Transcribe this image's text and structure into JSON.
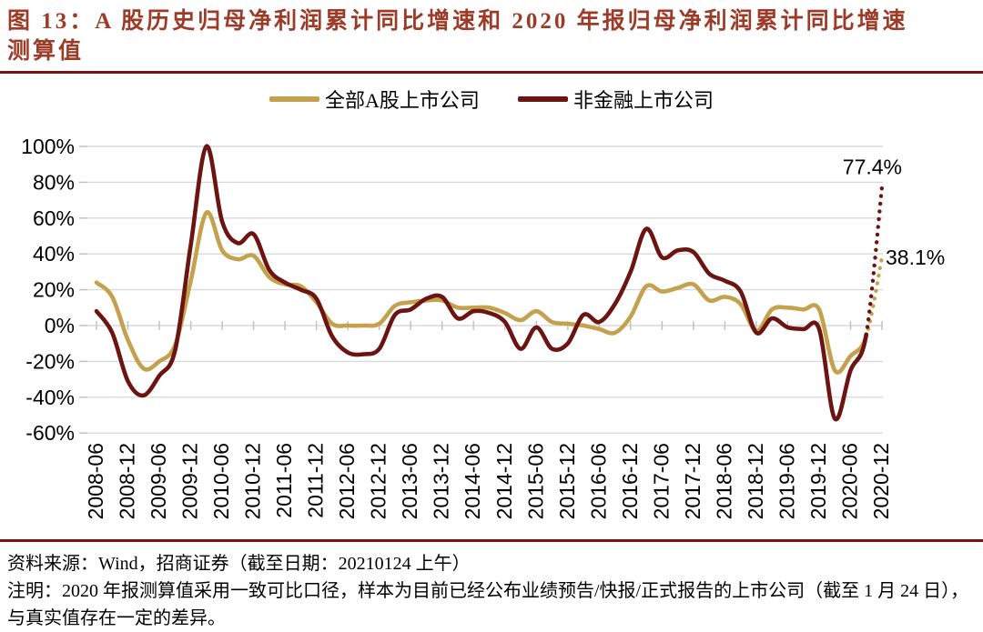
{
  "figure": {
    "title": "图 13：A 股历史归母净利润累计同比增速和 2020 年报归母净利润累计同比增速测算值",
    "title_color": "#9C3B28",
    "rule_color": "#7B1214"
  },
  "legend": [
    {
      "label": "全部A股上市公司",
      "color": "#C4A24D"
    },
    {
      "label": "非金融上市公司",
      "color": "#6B1412"
    }
  ],
  "chart_data": {
    "type": "line",
    "title": "A 股历史归母净利润累计同比增速和 2020 年报归母净利润累计同比增速测算值",
    "xlabel": "",
    "ylabel": "",
    "ylim": [
      -60,
      100
    ],
    "grid": "horizontal",
    "grid_color": "#D9D9D9",
    "tick_color": "#BFBFBF",
    "legend_position": "top",
    "x": [
      "2008-06",
      "2008-09",
      "2008-12",
      "2009-03",
      "2009-06",
      "2009-09",
      "2009-12",
      "2010-03",
      "2010-06",
      "2010-09",
      "2010-12",
      "2011-03",
      "2011-06",
      "2011-09",
      "2011-12",
      "2012-03",
      "2012-06",
      "2012-09",
      "2012-12",
      "2013-03",
      "2013-06",
      "2013-09",
      "2013-12",
      "2014-03",
      "2014-06",
      "2014-09",
      "2014-12",
      "2015-03",
      "2015-06",
      "2015-09",
      "2015-12",
      "2016-03",
      "2016-06",
      "2016-09",
      "2016-12",
      "2017-03",
      "2017-06",
      "2017-09",
      "2017-12",
      "2018-03",
      "2018-06",
      "2018-09",
      "2018-12",
      "2019-03",
      "2019-06",
      "2019-09",
      "2019-12",
      "2020-03",
      "2020-06",
      "2020-09",
      "2020-12"
    ],
    "x_axis_labels": [
      "2008-06",
      "2008-12",
      "2009-06",
      "2009-12",
      "2010-06",
      "2010-12",
      "2011-06",
      "2011-12",
      "2012-06",
      "2012-12",
      "2013-06",
      "2013-12",
      "2014-06",
      "2014-12",
      "2015-06",
      "2015-12",
      "2016-06",
      "2016-12",
      "2017-06",
      "2017-12",
      "2018-06",
      "2018-12",
      "2019-06",
      "2019-12",
      "2020-06",
      "2020-12"
    ],
    "yticks": [
      {
        "value": 100,
        "label": "100%"
      },
      {
        "value": 80,
        "label": "80%"
      },
      {
        "value": 60,
        "label": "60%"
      },
      {
        "value": 40,
        "label": "40%"
      },
      {
        "value": 20,
        "label": "20%"
      },
      {
        "value": 0,
        "label": "0%"
      },
      {
        "value": -20,
        "label": "-20%"
      },
      {
        "value": -40,
        "label": "-40%"
      },
      {
        "value": -60,
        "label": "-60%"
      }
    ],
    "dotted_from_index": 49,
    "series": [
      {
        "id": "all-a-share",
        "name": "全部A股上市公司",
        "color": "#C4A24D",
        "values": [
          24,
          16,
          -8,
          -24,
          -20,
          -11,
          25,
          63,
          42,
          37,
          39,
          27,
          23,
          22,
          13,
          1,
          0,
          0,
          1,
          11,
          13,
          14,
          14,
          10,
          10,
          10,
          7,
          3,
          8,
          2,
          1,
          0,
          -2,
          -4,
          5,
          22,
          19,
          21,
          23,
          14,
          16,
          12,
          -3,
          9,
          10,
          9,
          9,
          -25,
          -17,
          -6,
          38.1
        ]
      },
      {
        "id": "non-financial",
        "name": "非金融上市公司",
        "color": "#6B1412",
        "values": [
          8,
          -4,
          -31,
          -39,
          -28,
          -14,
          45,
          100,
          58,
          46,
          51,
          31,
          24,
          20,
          15,
          -6,
          -15,
          -16,
          -13,
          6,
          9,
          15,
          16,
          4,
          8,
          7,
          2,
          -13,
          -1,
          -13,
          -10,
          6,
          2,
          12,
          30,
          54,
          38,
          42,
          41,
          29,
          25,
          19,
          -4,
          4,
          -1,
          -2,
          -2,
          -52,
          -25,
          -5,
          77.4
        ]
      }
    ],
    "annotations": [
      {
        "text": "77.4%",
        "series_index": 1,
        "placement": "above-end"
      },
      {
        "text": "38.1%",
        "series_index": 0,
        "placement": "right-of-end"
      }
    ]
  },
  "footer": {
    "source": "资料来源：Wind，招商证券（截至日期：20210124 上午）",
    "note": "注明：2020 年报测算值采用一致可比口径，样本为目前已经公布业绩预告/快报/正式报告的上市公司（截至 1 月 24 日），与真实值存在一定的差异。"
  }
}
